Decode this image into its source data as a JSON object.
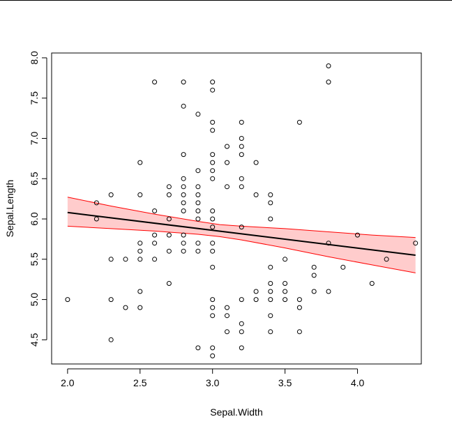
{
  "chart_data": {
    "type": "scatter",
    "title": "",
    "xlabel": "Sepal.Width",
    "ylabel": "Sepal.Length",
    "xlim": [
      1.89,
      4.44
    ],
    "ylim": [
      4.2,
      8.06
    ],
    "xticks": [
      "2.0",
      "2.5",
      "3.0",
      "3.5",
      "4.0"
    ],
    "yticks": [
      "4.5",
      "5.0",
      "5.5",
      "6.0",
      "6.5",
      "7.0",
      "7.5",
      "8.0"
    ],
    "grid": false,
    "points": [
      [
        2.0,
        5.0
      ],
      [
        2.2,
        6.2
      ],
      [
        2.2,
        6.0
      ],
      [
        2.3,
        6.3
      ],
      [
        2.3,
        5.5
      ],
      [
        2.3,
        5.0
      ],
      [
        2.3,
        4.5
      ],
      [
        2.4,
        5.5
      ],
      [
        2.4,
        4.9
      ],
      [
        2.5,
        6.7
      ],
      [
        2.5,
        6.3
      ],
      [
        2.5,
        5.7
      ],
      [
        2.5,
        5.6
      ],
      [
        2.5,
        5.5
      ],
      [
        2.5,
        5.1
      ],
      [
        2.5,
        4.9
      ],
      [
        2.6,
        7.7
      ],
      [
        2.6,
        6.1
      ],
      [
        2.6,
        5.8
      ],
      [
        2.6,
        5.7
      ],
      [
        2.6,
        5.5
      ],
      [
        2.7,
        6.4
      ],
      [
        2.7,
        6.3
      ],
      [
        2.7,
        6.0
      ],
      [
        2.7,
        5.8
      ],
      [
        2.7,
        5.6
      ],
      [
        2.7,
        5.2
      ],
      [
        2.8,
        7.7
      ],
      [
        2.8,
        7.4
      ],
      [
        2.8,
        6.8
      ],
      [
        2.8,
        6.5
      ],
      [
        2.8,
        6.4
      ],
      [
        2.8,
        6.3
      ],
      [
        2.8,
        6.2
      ],
      [
        2.8,
        6.1
      ],
      [
        2.8,
        5.8
      ],
      [
        2.8,
        5.7
      ],
      [
        2.8,
        5.6
      ],
      [
        2.9,
        7.3
      ],
      [
        2.9,
        6.6
      ],
      [
        2.9,
        6.4
      ],
      [
        2.9,
        6.3
      ],
      [
        2.9,
        6.2
      ],
      [
        2.9,
        6.1
      ],
      [
        2.9,
        6.0
      ],
      [
        2.9,
        5.7
      ],
      [
        2.9,
        5.6
      ],
      [
        2.9,
        4.4
      ],
      [
        3.0,
        7.7
      ],
      [
        3.0,
        7.6
      ],
      [
        3.0,
        7.2
      ],
      [
        3.0,
        7.1
      ],
      [
        3.0,
        6.8
      ],
      [
        3.0,
        6.7
      ],
      [
        3.0,
        6.6
      ],
      [
        3.0,
        6.5
      ],
      [
        3.0,
        6.1
      ],
      [
        3.0,
        6.0
      ],
      [
        3.0,
        5.9
      ],
      [
        3.0,
        5.7
      ],
      [
        3.0,
        5.6
      ],
      [
        3.0,
        5.4
      ],
      [
        3.0,
        5.0
      ],
      [
        3.0,
        4.9
      ],
      [
        3.0,
        4.8
      ],
      [
        3.0,
        4.4
      ],
      [
        3.0,
        4.3
      ],
      [
        3.1,
        6.9
      ],
      [
        3.1,
        6.7
      ],
      [
        3.1,
        6.4
      ],
      [
        3.1,
        4.9
      ],
      [
        3.1,
        4.8
      ],
      [
        3.1,
        4.6
      ],
      [
        3.2,
        7.2
      ],
      [
        3.2,
        7.0
      ],
      [
        3.2,
        6.9
      ],
      [
        3.2,
        6.8
      ],
      [
        3.2,
        6.5
      ],
      [
        3.2,
        6.4
      ],
      [
        3.2,
        5.9
      ],
      [
        3.2,
        5.0
      ],
      [
        3.2,
        4.7
      ],
      [
        3.2,
        4.6
      ],
      [
        3.2,
        4.4
      ],
      [
        3.3,
        6.7
      ],
      [
        3.3,
        6.3
      ],
      [
        3.3,
        5.1
      ],
      [
        3.3,
        5.0
      ],
      [
        3.4,
        6.3
      ],
      [
        3.4,
        6.2
      ],
      [
        3.4,
        6.0
      ],
      [
        3.4,
        5.4
      ],
      [
        3.4,
        5.2
      ],
      [
        3.4,
        5.1
      ],
      [
        3.4,
        5.0
      ],
      [
        3.4,
        4.8
      ],
      [
        3.4,
        4.6
      ],
      [
        3.5,
        5.5
      ],
      [
        3.5,
        5.2
      ],
      [
        3.5,
        5.1
      ],
      [
        3.5,
        5.0
      ],
      [
        3.6,
        7.2
      ],
      [
        3.6,
        5.0
      ],
      [
        3.6,
        4.9
      ],
      [
        3.6,
        4.6
      ],
      [
        3.7,
        5.4
      ],
      [
        3.7,
        5.3
      ],
      [
        3.7,
        5.1
      ],
      [
        3.8,
        7.9
      ],
      [
        3.8,
        7.7
      ],
      [
        3.8,
        5.7
      ],
      [
        3.8,
        5.1
      ],
      [
        3.9,
        5.4
      ],
      [
        4.0,
        5.8
      ],
      [
        4.1,
        5.2
      ],
      [
        4.2,
        5.5
      ],
      [
        4.4,
        5.7
      ]
    ],
    "fit_line": {
      "x": [
        2.0,
        4.4
      ],
      "y": [
        6.08,
        5.55
      ]
    },
    "confidence_band": {
      "x": [
        2.0,
        2.3,
        2.6,
        2.9,
        3.05,
        3.2,
        3.5,
        3.8,
        4.1,
        4.4
      ],
      "upper": [
        6.27,
        6.16,
        6.06,
        5.97,
        5.93,
        5.91,
        5.88,
        5.84,
        5.8,
        5.77
      ],
      "lower": [
        5.91,
        5.88,
        5.85,
        5.81,
        5.78,
        5.74,
        5.64,
        5.53,
        5.43,
        5.33
      ]
    },
    "colors": {
      "band_fill": "#ffcccc",
      "band_edge": "#ff0000",
      "line": "#000000",
      "points": "#000000"
    }
  }
}
